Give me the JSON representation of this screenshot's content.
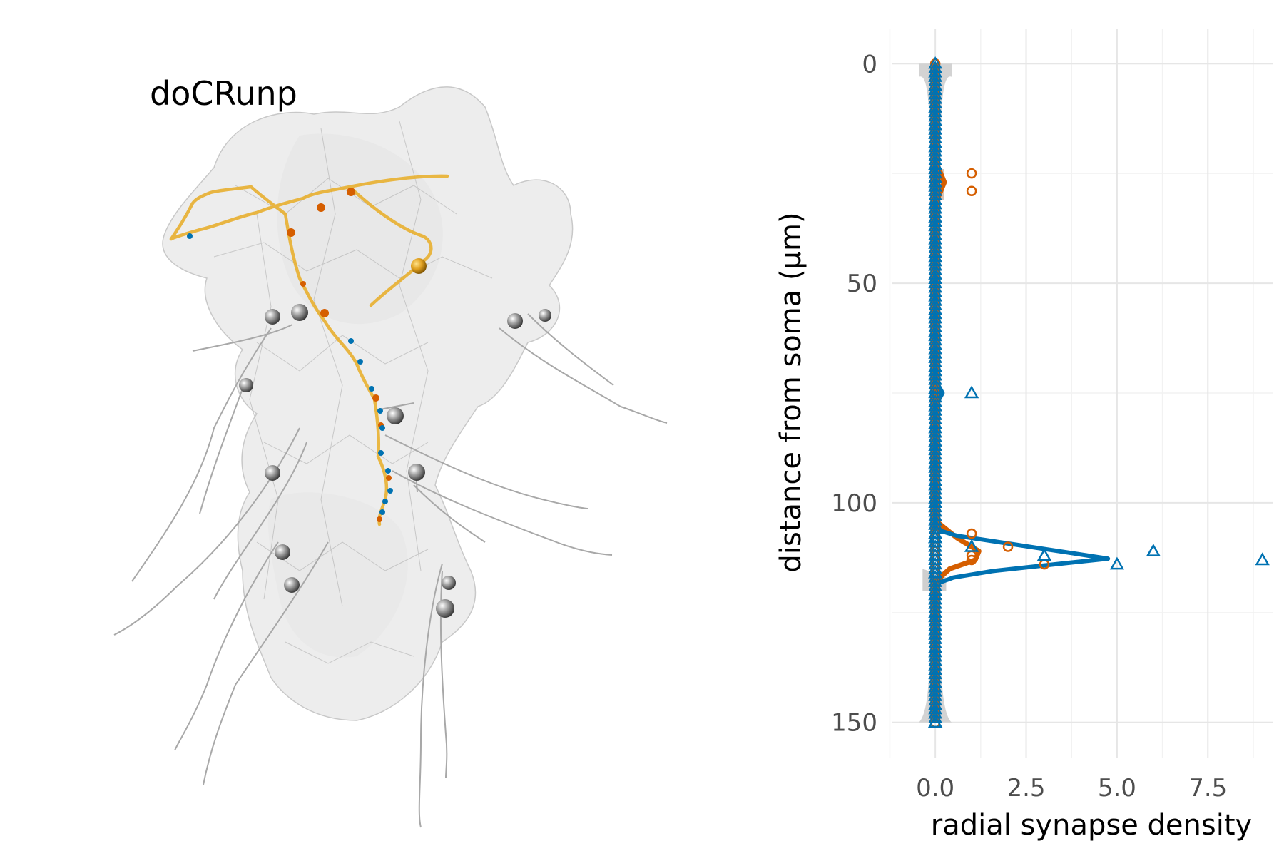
{
  "render": {
    "title": "doCRunp"
  },
  "chart_data": {
    "type": "line",
    "xlabel": "radial synapse density",
    "ylabel": "distance from soma (μm)",
    "xlim": [
      -1.2,
      9.3
    ],
    "ylim": [
      158,
      -8
    ],
    "y_reversed": true,
    "xticks": [
      "0.0",
      "2.5",
      "5.0",
      "7.5"
    ],
    "xtick_values": [
      0,
      2.5,
      5,
      7.5
    ],
    "yticks": [
      "0",
      "50",
      "100",
      "150"
    ],
    "ytick_values": [
      0,
      50,
      100,
      150
    ],
    "grid": true,
    "legend": "none",
    "series": [
      {
        "color": "#D55E00",
        "marker": "circle",
        "points": [
          {
            "y": 0,
            "x": 0
          },
          {
            "y": 25,
            "x": 1
          },
          {
            "y": 29,
            "x": 1
          },
          {
            "y": 75,
            "x": 0
          },
          {
            "y": 76,
            "x": 0
          },
          {
            "y": 107,
            "x": 1
          },
          {
            "y": 110,
            "x": 2
          },
          {
            "y": 111,
            "x": 0
          },
          {
            "y": 112,
            "x": 1
          },
          {
            "y": 113,
            "x": 1
          },
          {
            "y": 114,
            "x": 3
          }
        ],
        "density_curve": [
          {
            "y": 0,
            "x": 0
          },
          {
            "y": 22,
            "x": 0
          },
          {
            "y": 27,
            "x": 0.25
          },
          {
            "y": 32,
            "x": 0
          },
          {
            "y": 104,
            "x": 0
          },
          {
            "y": 108,
            "x": 0.6
          },
          {
            "y": 111,
            "x": 1.2
          },
          {
            "y": 113,
            "x": 1.1
          },
          {
            "y": 115,
            "x": 0.4
          },
          {
            "y": 118,
            "x": 0
          },
          {
            "y": 150,
            "x": 0
          }
        ]
      },
      {
        "color": "#0072B2",
        "marker": "triangle",
        "points": [
          {
            "y": 75,
            "x": 1
          },
          {
            "y": 108,
            "x": 0
          },
          {
            "y": 110,
            "x": 1
          },
          {
            "y": 111,
            "x": 6
          },
          {
            "y": 112,
            "x": 3
          },
          {
            "y": 113,
            "x": 9
          },
          {
            "y": 114,
            "x": 5
          },
          {
            "y": 116,
            "x": 0
          },
          {
            "y": 150,
            "x": 0
          }
        ],
        "density_curve": [
          {
            "y": 0,
            "x": 0
          },
          {
            "y": 72,
            "x": 0
          },
          {
            "y": 75,
            "x": 0.2
          },
          {
            "y": 78,
            "x": 0
          },
          {
            "y": 106,
            "x": 0
          },
          {
            "y": 107.5,
            "x": 0.6
          },
          {
            "y": 109.5,
            "x": 2.2
          },
          {
            "y": 111.5,
            "x": 3.8
          },
          {
            "y": 112.7,
            "x": 4.75
          },
          {
            "y": 113.8,
            "x": 3.5
          },
          {
            "y": 115.5,
            "x": 1.6
          },
          {
            "y": 117,
            "x": 0.5
          },
          {
            "y": 118.5,
            "x": 0
          },
          {
            "y": 150,
            "x": 0
          }
        ]
      }
    ],
    "zero_values": {
      "y_from": 0,
      "y_to": 150
    }
  }
}
